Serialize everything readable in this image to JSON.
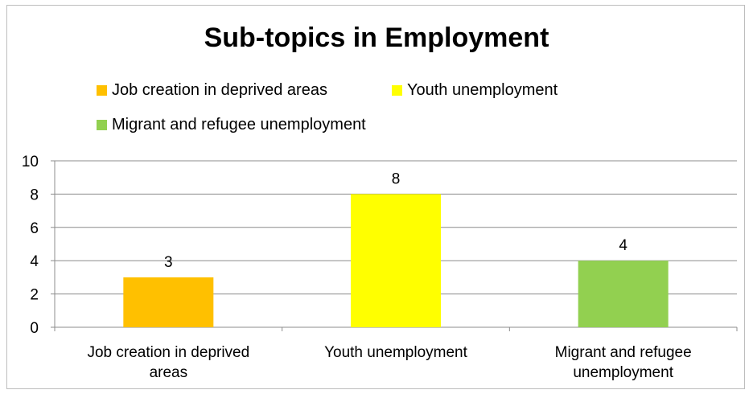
{
  "chart_data": {
    "type": "bar",
    "title": "Sub-topics in Employment",
    "categories": [
      "Job creation in deprived areas",
      "Youth unemployment",
      "Migrant and refugee unemployment"
    ],
    "x_tick_labels": [
      [
        "Job creation in deprived areas"
      ],
      [
        "Youth unemployment"
      ],
      [
        "Migrant and refugee",
        "unemployment"
      ]
    ],
    "values": [
      3,
      8,
      4
    ],
    "data_labels": [
      "3",
      "8",
      "4"
    ],
    "colors": [
      "#FFC000",
      "#FFFF00",
      "#92D050"
    ],
    "ylim": [
      0,
      10
    ],
    "yticks": [
      "0",
      "2",
      "4",
      "6",
      "8",
      "10"
    ],
    "legend": {
      "position": "top",
      "entries": [
        {
          "label": "Job creation in deprived areas",
          "color": "#FFC000"
        },
        {
          "label": "Youth unemployment",
          "color": "#FFFF00"
        },
        {
          "label": "Migrant and refugee unemployment",
          "color": "#92D050"
        }
      ]
    },
    "grid": true,
    "xlabel": "",
    "ylabel": ""
  }
}
